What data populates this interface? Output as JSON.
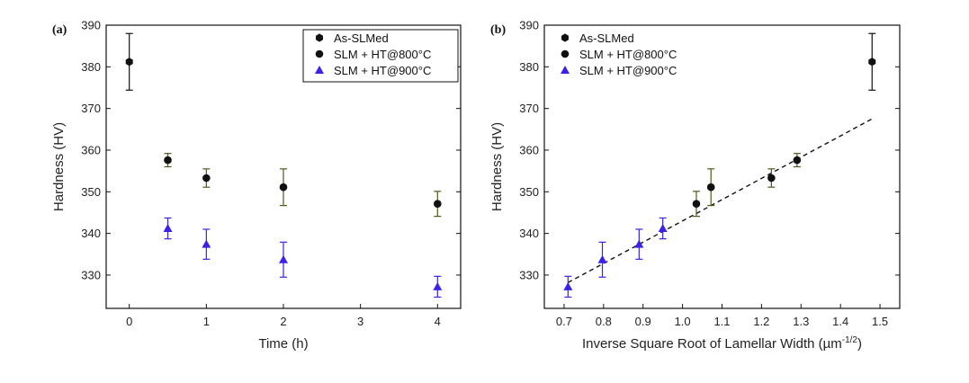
{
  "chart_data": [
    {
      "type": "scatter",
      "panel_label": "(a)",
      "xlabel": "Time (h)",
      "ylabel": "Hardness (HV)",
      "xlim": [
        -0.3,
        4.3
      ],
      "ylim": [
        322,
        390
      ],
      "x_ticks": [
        "0",
        "1",
        "2",
        "3",
        "4"
      ],
      "y_ticks": [
        "330",
        "340",
        "350",
        "360",
        "370",
        "380",
        "390"
      ],
      "legend_position": "top-right",
      "series": [
        {
          "name": "As-SLMed",
          "marker": "hexagon",
          "color": "#111111",
          "points": [
            {
              "x": 0,
              "y": 381.2,
              "err": 6.8
            }
          ]
        },
        {
          "name": "SLM + HT@800°C",
          "marker": "circle",
          "color": "#111111",
          "err_color": "#4d5a1f",
          "points": [
            {
              "x": 0.5,
              "y": 357.6,
              "err": 1.6
            },
            {
              "x": 1,
              "y": 353.3,
              "err": 2.2
            },
            {
              "x": 2,
              "y": 351.1,
              "err": 4.4
            },
            {
              "x": 4,
              "y": 347.1,
              "err": 3.0
            }
          ]
        },
        {
          "name": "SLM + HT@900°C",
          "marker": "triangle",
          "color": "#3a22e8",
          "points": [
            {
              "x": 0.5,
              "y": 341.2,
              "err": 2.5
            },
            {
              "x": 1,
              "y": 337.4,
              "err": 3.6
            },
            {
              "x": 2,
              "y": 333.7,
              "err": 4.2
            },
            {
              "x": 4,
              "y": 327.2,
              "err": 2.5
            }
          ]
        }
      ]
    },
    {
      "type": "scatter",
      "panel_label": "(b)",
      "xlabel": "Inverse Square Root of Lamellar Width (µm",
      "xlabel_sup": "-1/2",
      "xlabel_close": ")",
      "ylabel": "Hardness (HV)",
      "xlim": [
        0.65,
        1.55
      ],
      "ylim": [
        322,
        390
      ],
      "x_ticks": [
        "0.7",
        "0.8",
        "0.9",
        "1.0",
        "1.1",
        "1.2",
        "1.3",
        "1.4",
        "1.5"
      ],
      "y_ticks": [
        "330",
        "340",
        "350",
        "360",
        "370",
        "380",
        "390"
      ],
      "legend_position": "top-left",
      "fit_line": {
        "style": "dashed",
        "x": [
          0.71,
          1.48
        ],
        "y": [
          328.2,
          367.5
        ]
      },
      "series": [
        {
          "name": "As-SLMed",
          "marker": "hexagon",
          "color": "#111111",
          "points": [
            {
              "x": 1.48,
              "y": 381.2,
              "err": 6.8
            }
          ]
        },
        {
          "name": "SLM + HT@800°C",
          "marker": "circle",
          "color": "#111111",
          "err_color": "#4d5a1f",
          "points": [
            {
              "x": 1.035,
              "y": 347.1,
              "err": 3.0
            },
            {
              "x": 1.072,
              "y": 351.1,
              "err": 4.4
            },
            {
              "x": 1.225,
              "y": 353.3,
              "err": 2.2
            },
            {
              "x": 1.29,
              "y": 357.6,
              "err": 1.6
            }
          ]
        },
        {
          "name": "SLM + HT@900°C",
          "marker": "triangle",
          "color": "#3a22e8",
          "points": [
            {
              "x": 0.71,
              "y": 327.2,
              "err": 2.5
            },
            {
              "x": 0.797,
              "y": 333.7,
              "err": 4.2
            },
            {
              "x": 0.89,
              "y": 337.4,
              "err": 3.6
            },
            {
              "x": 0.95,
              "y": 341.2,
              "err": 2.5
            }
          ]
        }
      ]
    }
  ]
}
